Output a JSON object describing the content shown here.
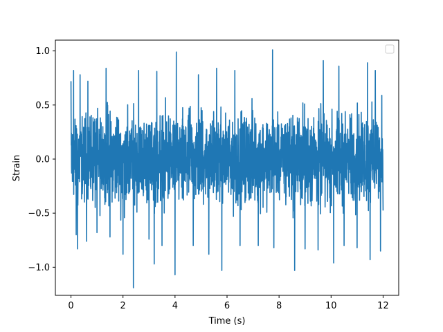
{
  "chart_data": {
    "type": "line",
    "title": "",
    "xlabel": "Time (s)",
    "ylabel": "Strain",
    "xlim": [
      -0.6,
      12.6
    ],
    "ylim": [
      -1.26,
      1.1
    ],
    "xticks": [
      0,
      2,
      4,
      6,
      8,
      10,
      12
    ],
    "xtick_labels": [
      "0",
      "2",
      "4",
      "6",
      "8",
      "10",
      "12"
    ],
    "yticks": [
      -1.0,
      -0.5,
      0.0,
      0.5,
      1.0
    ],
    "ytick_labels": [
      "−1.0",
      "−0.5",
      "0.0",
      "0.5",
      "1.0"
    ],
    "grid": false,
    "legend": {
      "placement": "top-right",
      "entries": []
    },
    "series": [
      {
        "color": "#1f77b4",
        "description_of_shape": "dense noise-like oscillation",
        "x_range": [
          0,
          12
        ],
        "typical_band": [
          -0.6,
          0.6
        ],
        "peaks": [
          {
            "x": 0.0,
            "y": 0.72
          },
          {
            "x": 0.1,
            "y": 0.82
          },
          {
            "x": 0.35,
            "y": 0.78
          },
          {
            "x": 0.65,
            "y": 0.72
          },
          {
            "x": 1.35,
            "y": 0.84
          },
          {
            "x": 2.0,
            "y": 0.87
          },
          {
            "x": 2.6,
            "y": 0.82
          },
          {
            "x": 3.3,
            "y": 0.81
          },
          {
            "x": 4.0,
            "y": 0.84
          },
          {
            "x": 4.05,
            "y": 0.99
          },
          {
            "x": 4.9,
            "y": 0.78
          },
          {
            "x": 5.6,
            "y": 0.84
          },
          {
            "x": 6.3,
            "y": 0.82
          },
          {
            "x": 7.2,
            "y": 0.99
          },
          {
            "x": 7.75,
            "y": 1.01
          },
          {
            "x": 8.6,
            "y": 0.99
          },
          {
            "x": 9.0,
            "y": 0.82
          },
          {
            "x": 9.7,
            "y": 0.91
          },
          {
            "x": 10.3,
            "y": 0.86
          },
          {
            "x": 11.0,
            "y": 0.91
          },
          {
            "x": 11.4,
            "y": 0.89
          },
          {
            "x": 11.7,
            "y": 0.82
          },
          {
            "x": 11.95,
            "y": 0.59
          }
        ],
        "troughs": [
          {
            "x": 0.2,
            "y": -0.7
          },
          {
            "x": 0.25,
            "y": -0.83
          },
          {
            "x": 0.6,
            "y": -0.76
          },
          {
            "x": 1.0,
            "y": -0.68
          },
          {
            "x": 1.5,
            "y": -0.72
          },
          {
            "x": 2.0,
            "y": -0.88
          },
          {
            "x": 2.4,
            "y": -1.19
          },
          {
            "x": 3.0,
            "y": -0.74
          },
          {
            "x": 3.2,
            "y": -0.97
          },
          {
            "x": 3.5,
            "y": -0.8
          },
          {
            "x": 4.0,
            "y": -1.07
          },
          {
            "x": 4.7,
            "y": -0.8
          },
          {
            "x": 5.3,
            "y": -0.88
          },
          {
            "x": 5.8,
            "y": -1.03
          },
          {
            "x": 6.5,
            "y": -0.8
          },
          {
            "x": 7.2,
            "y": -0.8
          },
          {
            "x": 7.8,
            "y": -0.82
          },
          {
            "x": 8.6,
            "y": -1.03
          },
          {
            "x": 9.0,
            "y": -0.83
          },
          {
            "x": 9.5,
            "y": -0.84
          },
          {
            "x": 10.1,
            "y": -0.96
          },
          {
            "x": 10.5,
            "y": -0.8
          },
          {
            "x": 11.0,
            "y": -0.82
          },
          {
            "x": 11.5,
            "y": -0.93
          },
          {
            "x": 11.9,
            "y": -0.85
          }
        ]
      }
    ]
  }
}
